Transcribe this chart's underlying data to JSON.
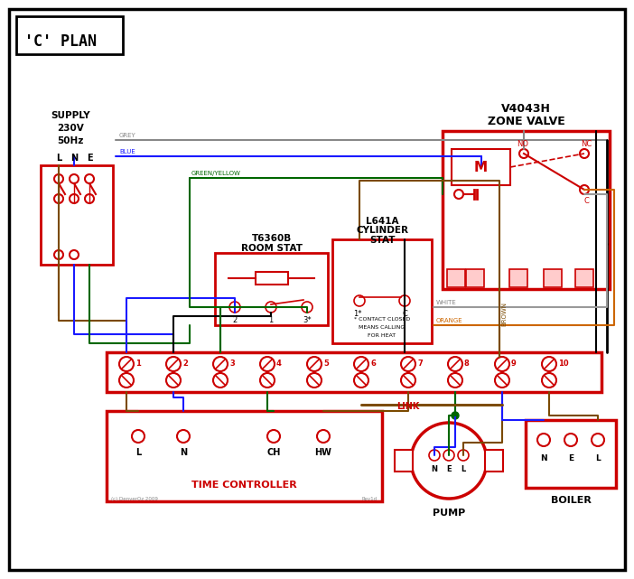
{
  "bg": "#ffffff",
  "red": "#cc0000",
  "blue": "#1a1aff",
  "green": "#006600",
  "brown": "#7b4a00",
  "grey": "#888888",
  "orange": "#cc6600",
  "black": "#000000",
  "white_wire": "#999999",
  "title": "'C' PLAN",
  "supply_lines": [
    "SUPPLY",
    "230V",
    "50Hz"
  ],
  "lne": [
    "L",
    "N",
    "E"
  ],
  "term_nums": [
    "1",
    "2",
    "3",
    "4",
    "5",
    "6",
    "7",
    "8",
    "9",
    "10"
  ],
  "tc_labels": [
    "L",
    "N",
    "CH",
    "HW"
  ],
  "pump_nel": [
    "N",
    "E",
    "L"
  ],
  "boiler_nel": [
    "N",
    "E",
    "L"
  ],
  "zv_title1": "V4043H",
  "zv_title2": "ZONE VALVE",
  "rs_title1": "T6360B",
  "rs_title2": "ROOM STAT",
  "cs_title1": "L641A",
  "cs_title2": "CYLINDER",
  "cs_title3": "STAT",
  "tc_title": "TIME CONTROLLER",
  "pump_title": "PUMP",
  "boiler_title": "BOILER",
  "link_text": "LINK",
  "grey_label": "GREY",
  "blue_label": "BLUE",
  "gy_label": "GREEN/YELLOW",
  "brown_label": "BROWN",
  "white_label": "WHITE",
  "orange_label": "ORANGE",
  "contact_note": [
    "* CONTACT CLOSED",
    "MEANS CALLING",
    "FOR HEAT"
  ]
}
